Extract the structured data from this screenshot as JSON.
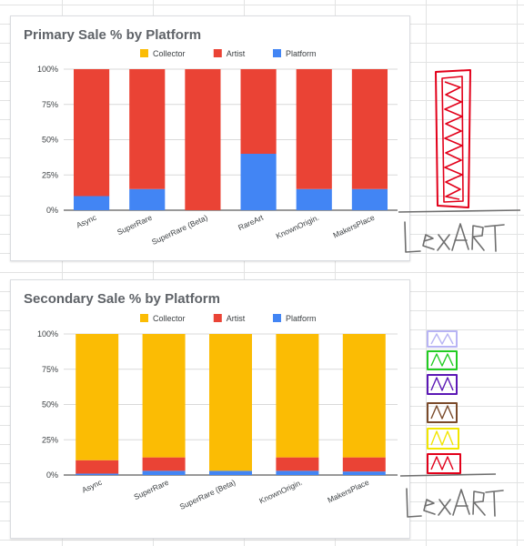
{
  "chart_data": [
    {
      "type": "bar",
      "stacked": true,
      "title": "Primary Sale % by Platform",
      "categories": [
        "Async",
        "SuperRare",
        "SuperRare (Beta)",
        "RareArt",
        "KnownOrigin.",
        "MakersPlace"
      ],
      "series": [
        {
          "name": "Platform",
          "color": "#4285f4",
          "values": [
            10,
            15,
            0,
            40,
            15,
            15
          ]
        },
        {
          "name": "Artist",
          "color": "#ea4335",
          "values": [
            90,
            85,
            100,
            60,
            85,
            85
          ]
        },
        {
          "name": "Collector",
          "color": "#fbbc04",
          "values": [
            0,
            0,
            0,
            0,
            0,
            0
          ]
        }
      ],
      "legend_order": [
        "Collector",
        "Artist",
        "Platform"
      ],
      "legend_position": "top",
      "ylim": [
        0,
        100
      ],
      "yticks": [
        "0%",
        "25%",
        "50%",
        "75%",
        "100%"
      ],
      "grid": true
    },
    {
      "type": "bar",
      "stacked": true,
      "title": "Secondary Sale % by Platform",
      "categories": [
        "Async",
        "SuperRare",
        "SuperRare (Beta)",
        "KnownOrigin.",
        "MakersPlace"
      ],
      "series": [
        {
          "name": "Platform",
          "color": "#4285f4",
          "values": [
            1,
            3,
            3,
            3,
            2.5
          ]
        },
        {
          "name": "Artist",
          "color": "#ea4335",
          "values": [
            9.5,
            9.5,
            0,
            9.5,
            10
          ]
        },
        {
          "name": "Collector",
          "color": "#fbbc04",
          "values": [
            89.5,
            87.5,
            97,
            87.5,
            87.5
          ]
        }
      ],
      "legend_order": [
        "Collector",
        "Artist",
        "Platform"
      ],
      "legend_position": "top",
      "ylim": [
        0,
        100
      ],
      "yticks": [
        "0%",
        "25%",
        "50%",
        "75%",
        "100%"
      ],
      "grid": true
    }
  ],
  "annotations": {
    "signature_1": "LexART",
    "signature_2": "LexART"
  }
}
